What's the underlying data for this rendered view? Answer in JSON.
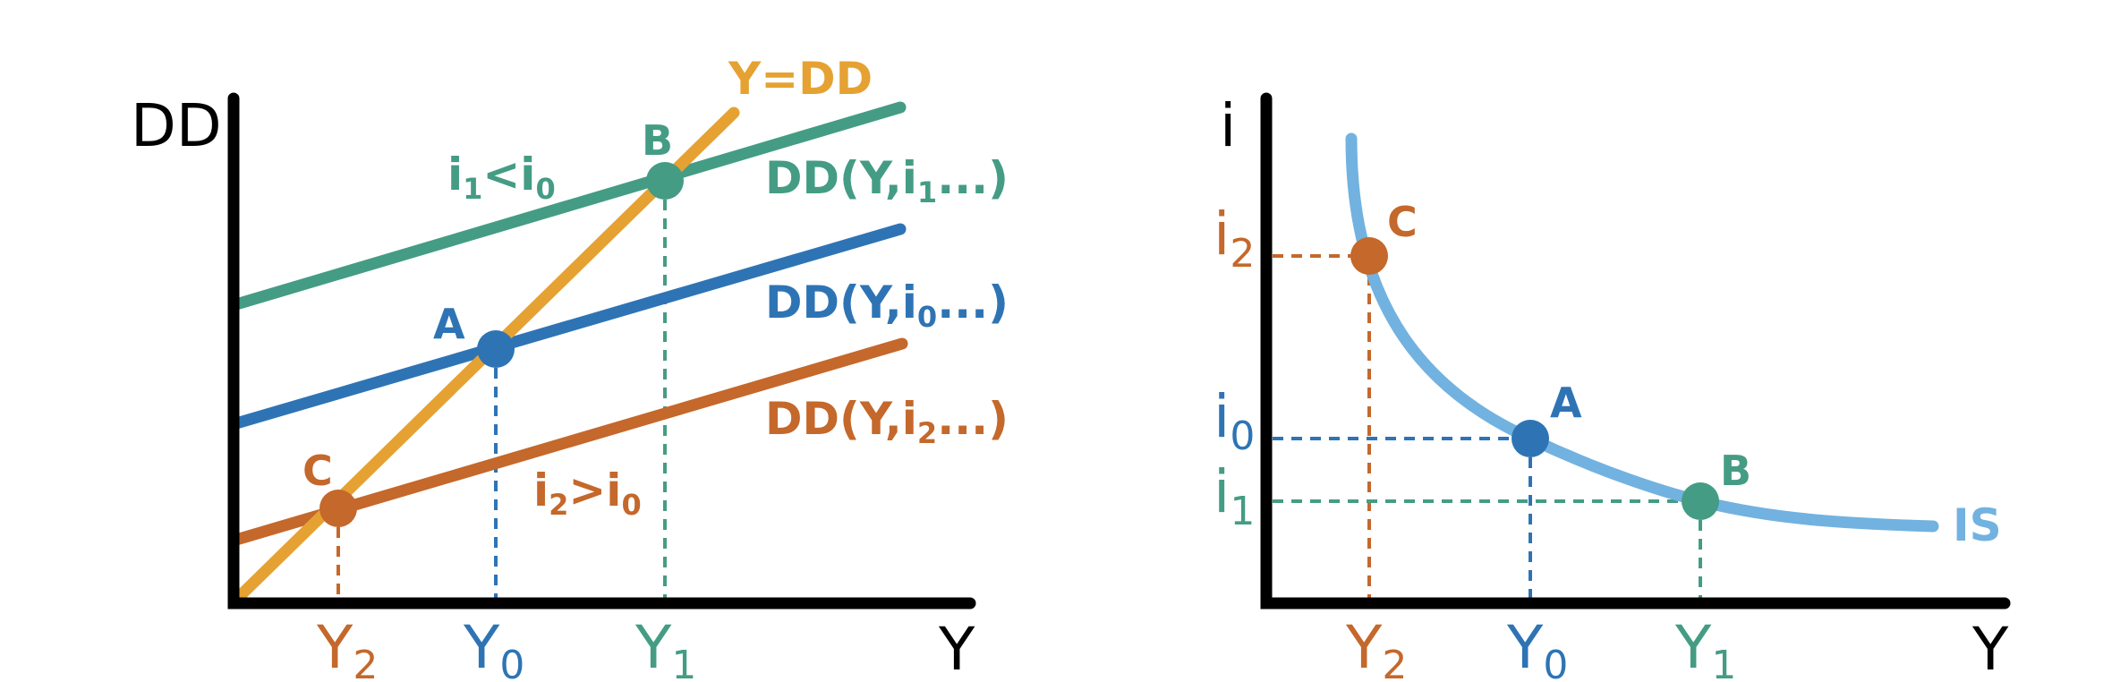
{
  "colors": {
    "green": "#449c84",
    "blue": "#2e74b5",
    "orange": "#c4682b",
    "gold": "#e5a232",
    "is_blue": "#72b2e0",
    "axis": "#000000"
  },
  "left_panel": {
    "y_axis_label": "DD",
    "x_axis_label": "Y",
    "line_45_label": "Y=DD",
    "curves": {
      "dd1": {
        "label": "DD(Y,i",
        "sub": "1",
        "tail": "...)"
      },
      "dd0": {
        "label": "DD(Y,i",
        "sub": "0",
        "tail": "...)"
      },
      "dd2": {
        "label": "DD(Y,i",
        "sub": "2",
        "tail": "...)"
      }
    },
    "annotations": {
      "green": {
        "a": "i",
        "a_sub": "1",
        "op": "<i",
        "b_sub": "0"
      },
      "orange": {
        "a": "i",
        "a_sub": "2",
        "op": ">i",
        "b_sub": "0"
      }
    },
    "points": {
      "a": "A",
      "b": "B",
      "c": "C"
    },
    "x_ticks": {
      "y2": {
        "base": "Y",
        "sub": "2"
      },
      "y0": {
        "base": "Y",
        "sub": "0"
      },
      "y1": {
        "base": "Y",
        "sub": "1"
      }
    }
  },
  "right_panel": {
    "y_axis_label": "i",
    "x_axis_label": "Y",
    "curve_label": "IS",
    "points": {
      "a": "A",
      "b": "B",
      "c": "C"
    },
    "y_ticks": {
      "i2": {
        "base": "i",
        "sub": "2"
      },
      "i0": {
        "base": "i",
        "sub": "0"
      },
      "i1": {
        "base": "i",
        "sub": "1"
      }
    },
    "x_ticks": {
      "y2": {
        "base": "Y",
        "sub": "2"
      },
      "y0": {
        "base": "Y",
        "sub": "0"
      },
      "y1": {
        "base": "Y",
        "sub": "1"
      }
    }
  }
}
